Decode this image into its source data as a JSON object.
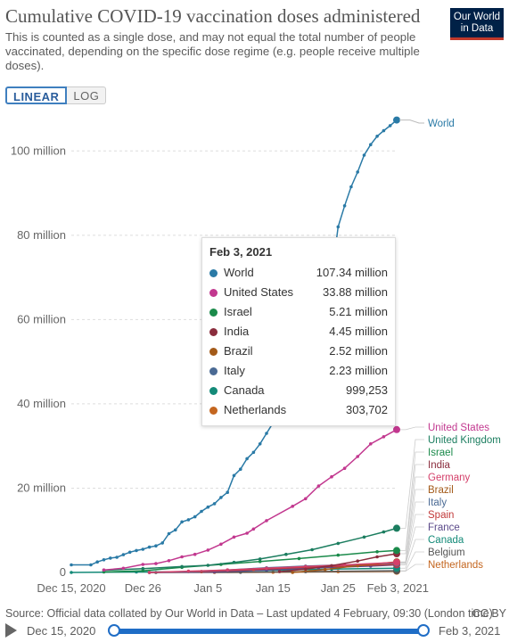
{
  "header": {
    "title": "Cumulative COVID-19 vaccination doses administered",
    "subtitle": "This is counted as a single dose, and may not equal the total number of people vaccinated, depending on the specific dose regime (e.g. people receive multiple doses).",
    "logo_line1": "Our World",
    "logo_line2": "in Data"
  },
  "controls": {
    "linear_label": "LINEAR",
    "log_label": "LOG",
    "active_scale": "linear"
  },
  "chart_data": {
    "type": "line",
    "title": "Cumulative COVID-19 vaccination doses administered",
    "xlabel": "",
    "ylabel": "",
    "x_ticks": [
      "Dec 15, 2020",
      "Dec 26",
      "Jan 5",
      "Jan 15",
      "Jan 25",
      "Feb 3, 2021"
    ],
    "y_ticks": [
      "0",
      "20 million",
      "40 million",
      "60 million",
      "80 million",
      "100 million"
    ],
    "y_range": [
      0,
      110
    ],
    "y_unit": "million",
    "x_range": [
      "2020-12-15",
      "2021-02-03"
    ],
    "grid": "horizontal-dashed",
    "legend": "right-side labels",
    "series": [
      {
        "name": "World",
        "color": "#2a7aa6",
        "end_y": 107.34,
        "points": [
          [
            "2020-12-15",
            1.8
          ],
          [
            "2020-12-18",
            1.8
          ],
          [
            "2020-12-19",
            2.5
          ],
          [
            "2020-12-20",
            3.0
          ],
          [
            "2020-12-21",
            3.4
          ],
          [
            "2020-12-22",
            3.6
          ],
          [
            "2020-12-23",
            4.2
          ],
          [
            "2020-12-24",
            4.8
          ],
          [
            "2020-12-25",
            5.2
          ],
          [
            "2020-12-26",
            5.5
          ],
          [
            "2020-12-27",
            6.0
          ],
          [
            "2020-12-28",
            6.3
          ],
          [
            "2020-12-29",
            7.0
          ],
          [
            "2020-12-30",
            9.2
          ],
          [
            "2020-12-31",
            10.1
          ],
          [
            "2021-01-01",
            12.0
          ],
          [
            "2021-01-02",
            12.5
          ],
          [
            "2021-01-03",
            13.2
          ],
          [
            "2021-01-04",
            14.5
          ],
          [
            "2021-01-05",
            15.5
          ],
          [
            "2021-01-06",
            16.3
          ],
          [
            "2021-01-07",
            17.8
          ],
          [
            "2021-01-08",
            19.0
          ],
          [
            "2021-01-09",
            23.0
          ],
          [
            "2021-01-10",
            24.5
          ],
          [
            "2021-01-11",
            27.0
          ],
          [
            "2021-01-12",
            28.5
          ],
          [
            "2021-01-13",
            30.5
          ],
          [
            "2021-01-14",
            33.0
          ],
          [
            "2021-01-15",
            35.5
          ],
          [
            "2021-01-16",
            37.5
          ],
          [
            "2021-01-17",
            40.0
          ],
          [
            "2021-01-18",
            42.0
          ],
          [
            "2021-01-19",
            45.0
          ],
          [
            "2021-01-24",
            70.0
          ],
          [
            "2021-01-25",
            82.0
          ],
          [
            "2021-01-26",
            87.0
          ],
          [
            "2021-01-27",
            91.5
          ],
          [
            "2021-01-28",
            95.0
          ],
          [
            "2021-01-29",
            99.0
          ],
          [
            "2021-01-30",
            101.5
          ],
          [
            "2021-01-31",
            103.5
          ],
          [
            "2021-02-01",
            104.8
          ],
          [
            "2021-02-02",
            106.0
          ],
          [
            "2021-02-03",
            107.34
          ]
        ]
      },
      {
        "name": "United States",
        "color": "#c2388f",
        "end_y": 33.88,
        "points": [
          [
            "2020-12-20",
            0.6
          ],
          [
            "2020-12-23",
            1.0
          ],
          [
            "2020-12-26",
            1.9
          ],
          [
            "2020-12-28",
            2.1
          ],
          [
            "2020-12-30",
            2.8
          ],
          [
            "2021-01-01",
            3.7
          ],
          [
            "2021-01-03",
            4.3
          ],
          [
            "2021-01-05",
            5.3
          ],
          [
            "2021-01-07",
            6.7
          ],
          [
            "2021-01-09",
            8.4
          ],
          [
            "2021-01-11",
            9.3
          ],
          [
            "2021-01-12",
            10.3
          ],
          [
            "2021-01-14",
            12.3
          ],
          [
            "2021-01-18",
            15.7
          ],
          [
            "2021-01-20",
            17.5
          ],
          [
            "2021-01-22",
            20.5
          ],
          [
            "2021-01-24",
            22.7
          ],
          [
            "2021-01-26",
            24.7
          ],
          [
            "2021-01-28",
            27.5
          ],
          [
            "2021-01-30",
            30.5
          ],
          [
            "2021-02-01",
            32.2
          ],
          [
            "2021-02-03",
            33.88
          ]
        ]
      },
      {
        "name": "United Kingdom",
        "color": "#1b7d5f",
        "end_y": 10.5,
        "points": [
          [
            "2020-12-20",
            0.5
          ],
          [
            "2020-12-26",
            0.9
          ],
          [
            "2021-01-01",
            1.4
          ],
          [
            "2021-01-05",
            1.7
          ],
          [
            "2021-01-09",
            2.4
          ],
          [
            "2021-01-13",
            3.2
          ],
          [
            "2021-01-17",
            4.3
          ],
          [
            "2021-01-21",
            5.4
          ],
          [
            "2021-01-25",
            6.9
          ],
          [
            "2021-01-29",
            8.4
          ],
          [
            "2021-02-01",
            9.6
          ],
          [
            "2021-02-03",
            10.5
          ]
        ]
      },
      {
        "name": "Israel",
        "color": "#1a8a4a",
        "end_y": 5.21,
        "points": [
          [
            "2020-12-20",
            0.1
          ],
          [
            "2020-12-26",
            0.4
          ],
          [
            "2021-01-01",
            1.2
          ],
          [
            "2021-01-07",
            1.9
          ],
          [
            "2021-01-13",
            2.6
          ],
          [
            "2021-01-19",
            3.3
          ],
          [
            "2021-01-25",
            4.1
          ],
          [
            "2021-01-31",
            4.9
          ],
          [
            "2021-02-03",
            5.21
          ]
        ]
      },
      {
        "name": "India",
        "color": "#8a2d3d",
        "end_y": 4.45,
        "points": [
          [
            "2021-01-16",
            0.2
          ],
          [
            "2021-01-20",
            0.8
          ],
          [
            "2021-01-24",
            1.6
          ],
          [
            "2021-01-28",
            2.7
          ],
          [
            "2021-01-31",
            3.7
          ],
          [
            "2021-02-03",
            4.45
          ]
        ]
      },
      {
        "name": "Germany",
        "color": "#d4406a",
        "end_y": 2.4,
        "points": [
          [
            "2020-12-27",
            0.0
          ],
          [
            "2021-01-02",
            0.3
          ],
          [
            "2021-01-08",
            0.6
          ],
          [
            "2021-01-14",
            1.0
          ],
          [
            "2021-01-20",
            1.4
          ],
          [
            "2021-01-26",
            1.8
          ],
          [
            "2021-02-03",
            2.4
          ]
        ]
      },
      {
        "name": "Brazil",
        "color": "#a35a19",
        "end_y": 2.52,
        "points": [
          [
            "2021-01-18",
            0.0
          ],
          [
            "2021-01-23",
            0.7
          ],
          [
            "2021-01-28",
            1.6
          ],
          [
            "2021-02-03",
            2.52
          ]
        ]
      },
      {
        "name": "Italy",
        "color": "#4a6a94",
        "end_y": 2.23,
        "points": [
          [
            "2020-12-27",
            0.0
          ],
          [
            "2021-01-02",
            0.2
          ],
          [
            "2021-01-08",
            0.6
          ],
          [
            "2021-01-14",
            1.1
          ],
          [
            "2021-01-20",
            1.5
          ],
          [
            "2021-01-26",
            1.8
          ],
          [
            "2021-02-03",
            2.23
          ]
        ]
      },
      {
        "name": "Spain",
        "color": "#c23a3a",
        "end_y": 1.9,
        "points": [
          [
            "2020-12-27",
            0.0
          ],
          [
            "2021-01-04",
            0.2
          ],
          [
            "2021-01-12",
            0.7
          ],
          [
            "2021-01-20",
            1.2
          ],
          [
            "2021-01-28",
            1.6
          ],
          [
            "2021-02-03",
            1.9
          ]
        ]
      },
      {
        "name": "France",
        "color": "#5b4a8a",
        "end_y": 1.8,
        "points": [
          [
            "2020-12-27",
            0.0
          ],
          [
            "2021-01-06",
            0.1
          ],
          [
            "2021-01-14",
            0.6
          ],
          [
            "2021-01-22",
            1.1
          ],
          [
            "2021-01-30",
            1.5
          ],
          [
            "2021-02-03",
            1.8
          ]
        ]
      },
      {
        "name": "Canada",
        "color": "#138a78",
        "end_y": 0.999253,
        "points": [
          [
            "2020-12-15",
            0.0
          ],
          [
            "2020-12-25",
            0.1
          ],
          [
            "2021-01-04",
            0.2
          ],
          [
            "2021-01-14",
            0.5
          ],
          [
            "2021-01-24",
            0.8
          ],
          [
            "2021-02-03",
            0.999253
          ]
        ]
      },
      {
        "name": "Belgium",
        "color": "#555555",
        "end_y": 0.4,
        "points": [
          [
            "2020-12-28",
            0.0
          ],
          [
            "2021-01-10",
            0.05
          ],
          [
            "2021-01-20",
            0.2
          ],
          [
            "2021-02-03",
            0.4
          ]
        ]
      },
      {
        "name": "Netherlands",
        "color": "#c4661f",
        "end_y": 0.303702,
        "points": [
          [
            "2021-01-06",
            0.0
          ],
          [
            "2021-01-15",
            0.06
          ],
          [
            "2021-01-25",
            0.18
          ],
          [
            "2021-02-03",
            0.303702
          ]
        ]
      }
    ],
    "right_labels": [
      {
        "name": "World",
        "color": "#2a7aa6"
      },
      {
        "name": "United States",
        "color": "#c2388f"
      },
      {
        "name": "United Kingdom",
        "color": "#1b7d5f"
      },
      {
        "name": "Israel",
        "color": "#1a8a4a"
      },
      {
        "name": "India",
        "color": "#8a2d3d"
      },
      {
        "name": "Germany",
        "color": "#d4406a"
      },
      {
        "name": "Brazil",
        "color": "#a35a19"
      },
      {
        "name": "Italy",
        "color": "#4a6a94"
      },
      {
        "name": "Spain",
        "color": "#c23a3a"
      },
      {
        "name": "France",
        "color": "#5b4a8a"
      },
      {
        "name": "Canada",
        "color": "#138a78"
      },
      {
        "name": "Belgium",
        "color": "#555555"
      },
      {
        "name": "Netherlands",
        "color": "#c4661f"
      }
    ]
  },
  "tooltip": {
    "date": "Feb 3, 2021",
    "rows": [
      {
        "name": "World",
        "value": "107.34 million",
        "color": "#2a7aa6"
      },
      {
        "name": "United States",
        "value": "33.88 million",
        "color": "#c2388f"
      },
      {
        "name": "Israel",
        "value": "5.21 million",
        "color": "#1a8a4a"
      },
      {
        "name": "India",
        "value": "4.45 million",
        "color": "#8a2d3d"
      },
      {
        "name": "Brazil",
        "value": "2.52 million",
        "color": "#a35a19"
      },
      {
        "name": "Italy",
        "value": "2.23 million",
        "color": "#4a6a94"
      },
      {
        "name": "Canada",
        "value": "999,253",
        "color": "#138a78"
      },
      {
        "name": "Netherlands",
        "value": "303,702",
        "color": "#c4661f"
      }
    ]
  },
  "footer": {
    "source": "Source: Official data collated by Our World in Data – Last updated 4 February, 09:30 (London time)",
    "license": "CC BY"
  },
  "timeline": {
    "start_label": "Dec 15, 2020",
    "end_label": "Feb 3, 2021"
  }
}
